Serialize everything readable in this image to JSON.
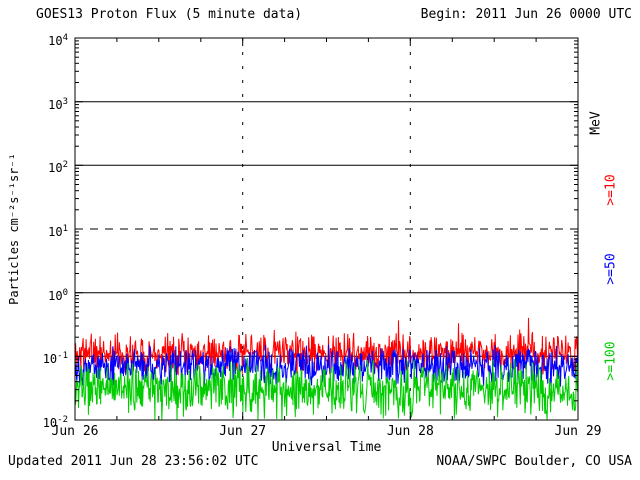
{
  "header": {
    "title": "GOES13 Proton Flux (5 minute data)",
    "begin": "Begin: 2011 Jun 26 0000 UTC"
  },
  "footer": {
    "updated": "Updated 2011 Jun 28 23:56:02 UTC",
    "credit": "NOAA/SWPC Boulder, CO USA"
  },
  "legend": {
    "unit_label": "MeV",
    "items": [
      {
        "label": ">=10",
        "color": "#ff0000"
      },
      {
        "label": ">=50",
        "color": "#0000ff"
      },
      {
        "label": ">=100",
        "color": "#00cc00"
      }
    ]
  },
  "chart_data": {
    "type": "line",
    "title": "GOES13 Proton Flux (5 minute data)",
    "xlabel": "Universal Time",
    "ylabel": "Particles cm⁻²s⁻¹sr⁻¹",
    "x_tick_labels": [
      "Jun 26",
      "Jun 27",
      "Jun 28",
      "Jun 29"
    ],
    "x_range_days": [
      0,
      3
    ],
    "y_log_range": [
      -2,
      4
    ],
    "y_tick_exponents": [
      -2,
      -1,
      0,
      1,
      2,
      3,
      4
    ],
    "hlines": [
      {
        "log10": 3,
        "style": "solid"
      },
      {
        "log10": 2,
        "style": "solid"
      },
      {
        "log10": 1,
        "style": "dashed"
      },
      {
        "log10": 0,
        "style": "solid"
      },
      {
        "log10": -1,
        "style": "solid"
      }
    ],
    "vlines_days": [
      1,
      2
    ],
    "samples_per_day": 288,
    "grid": true,
    "legend_position": "right",
    "series": [
      {
        "name": ">=10 MeV",
        "color": "#ff0000",
        "base_log10": -0.95,
        "noise_log10": 0.22,
        "spikes": "up",
        "seed": 11
      },
      {
        "name": ">=50 MeV",
        "color": "#0000ff",
        "base_log10": -1.15,
        "noise_log10": 0.22,
        "spikes": "none",
        "seed": 22
      },
      {
        "name": ">=100 MeV",
        "color": "#00cc00",
        "base_log10": -1.5,
        "noise_log10": 0.3,
        "spikes": "down",
        "seed": 33
      }
    ]
  }
}
